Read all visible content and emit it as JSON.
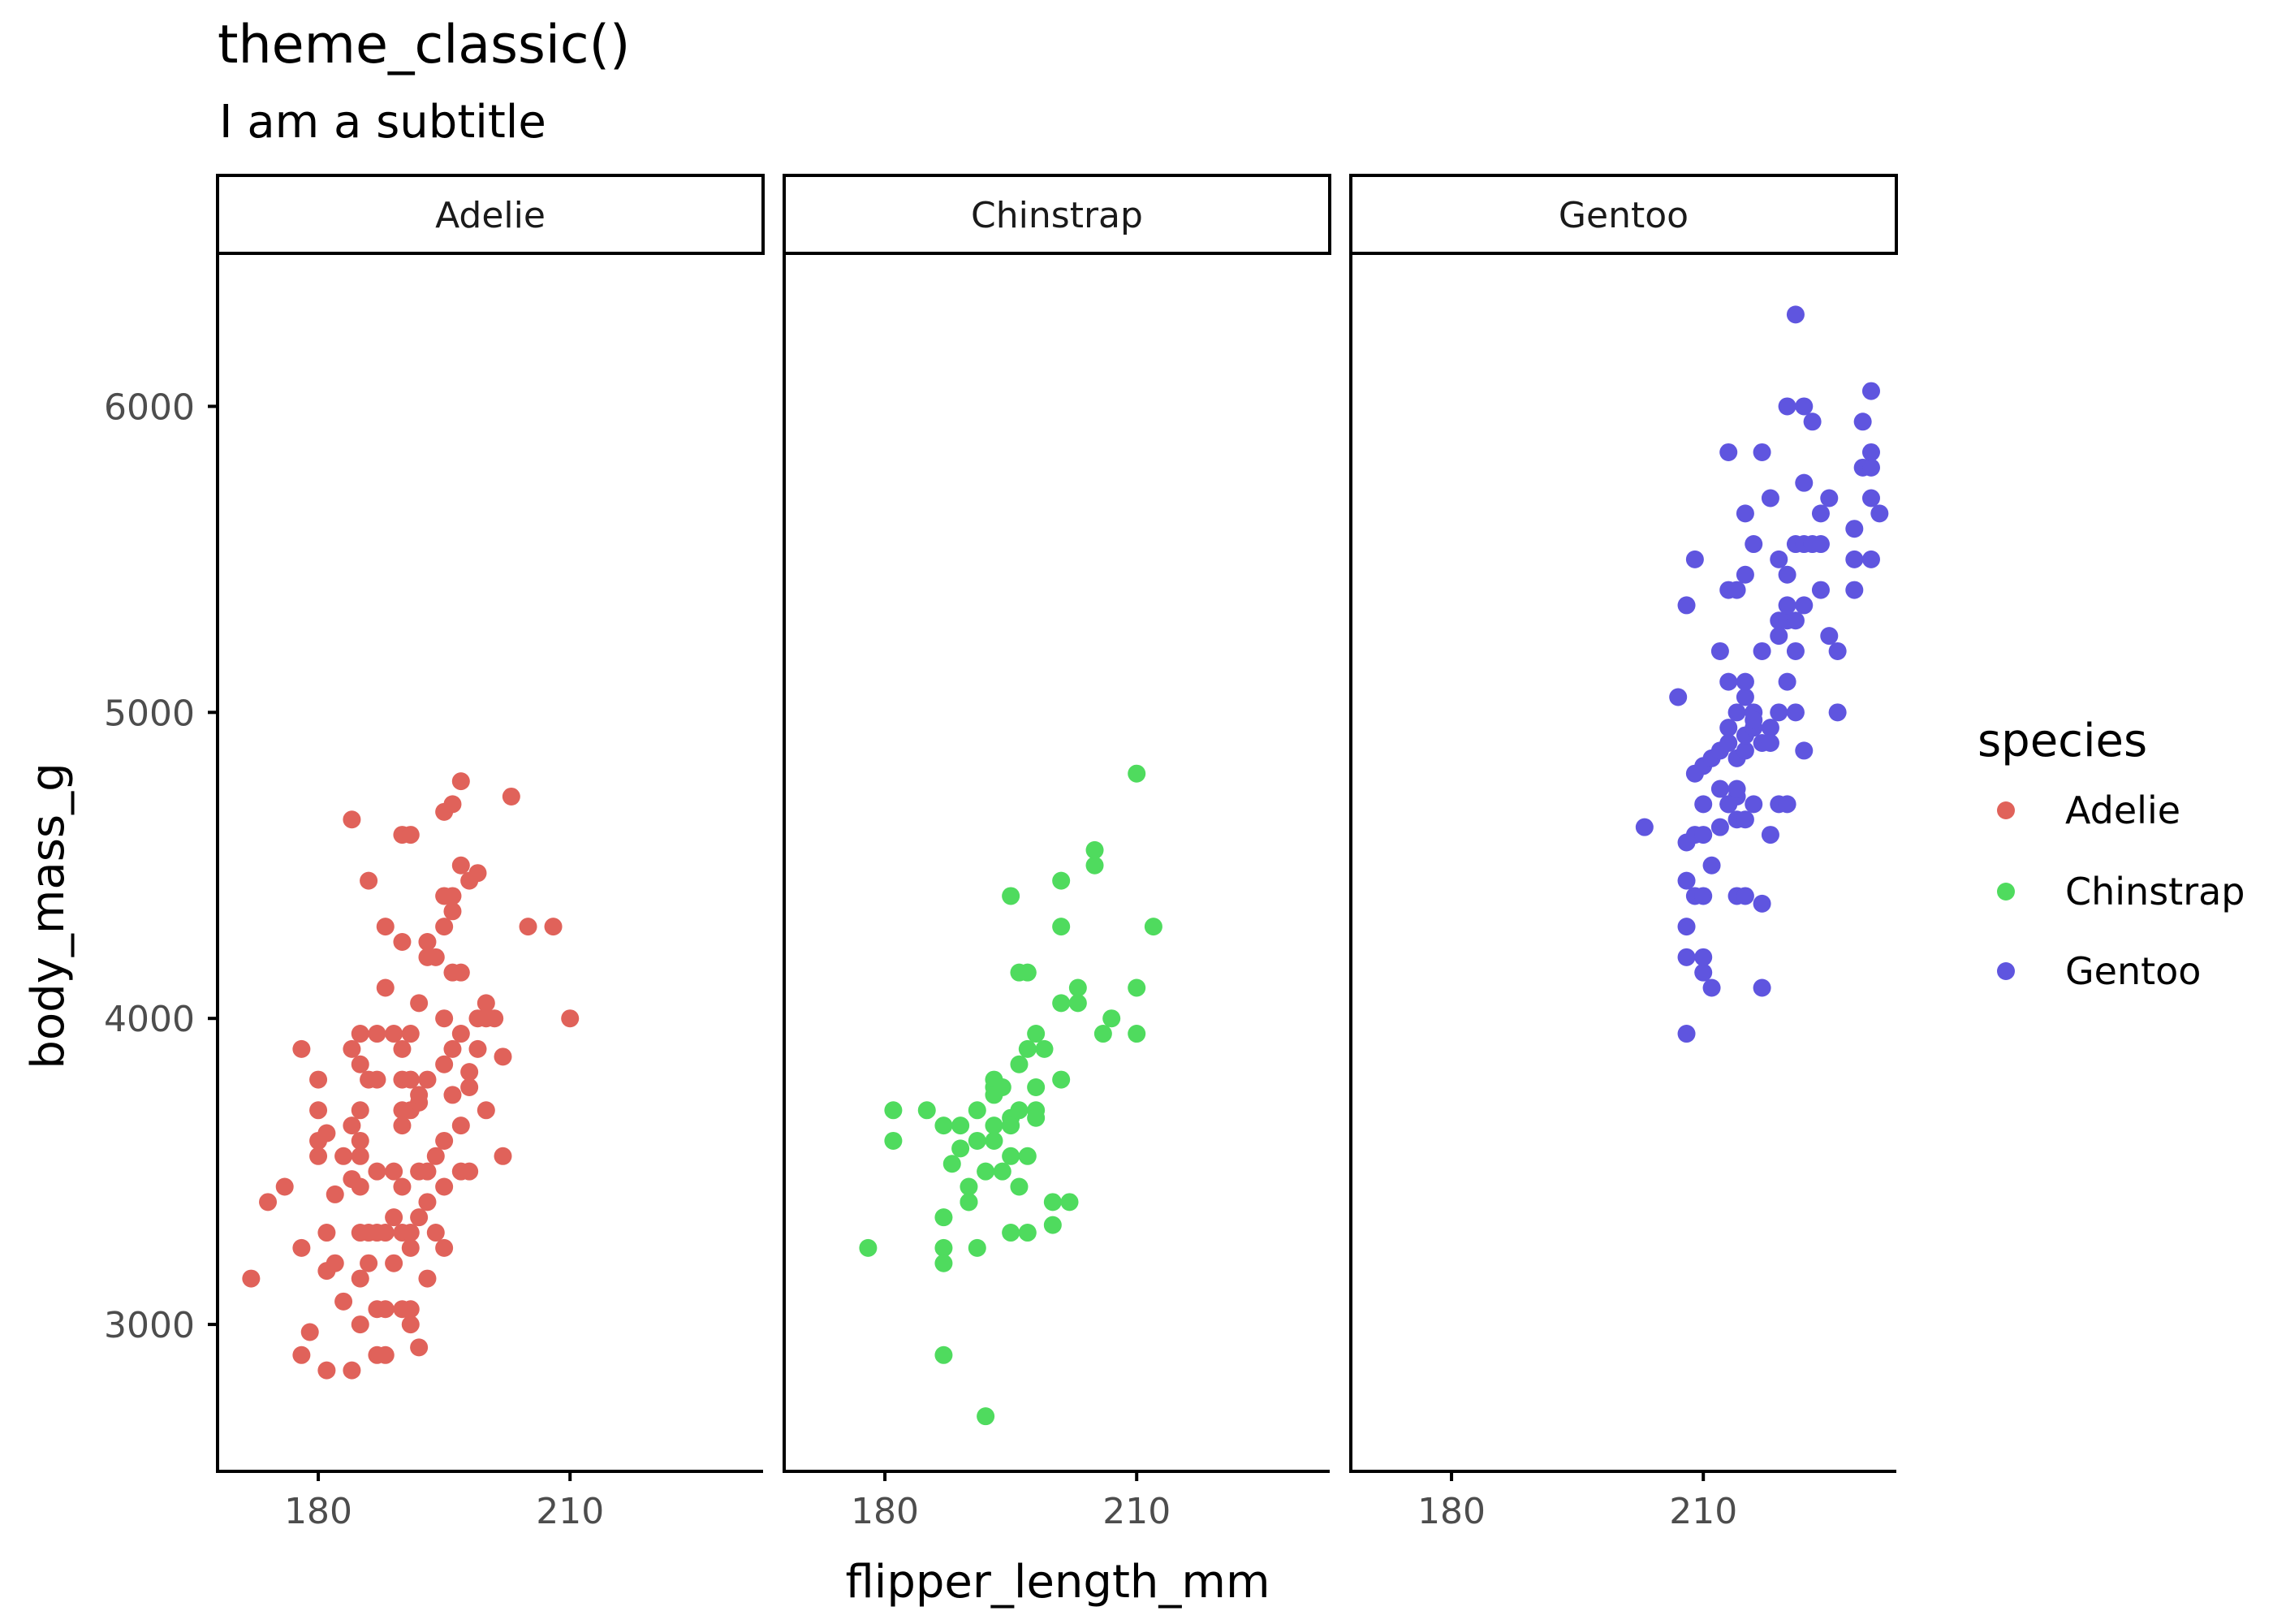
{
  "title": "theme_classic()",
  "subtitle": "I am a subtitle",
  "legend": {
    "title": "species",
    "items": [
      {
        "label": "Adelie",
        "color": "#E0625A"
      },
      {
        "label": "Chinstrap",
        "color": "#4FDB5E"
      },
      {
        "label": "Gentoo",
        "color": "#5F55DF"
      }
    ]
  },
  "chart_data": {
    "type": "scatter",
    "title": "theme_classic()",
    "subtitle": "I am a subtitle",
    "xlabel": "flipper_length_mm",
    "ylabel": "body_mass_g",
    "xlim": [
      168,
      233
    ],
    "ylim": [
      2520,
      6500
    ],
    "x_ticks": [
      180,
      210
    ],
    "y_ticks": [
      3000,
      4000,
      5000,
      6000
    ],
    "grid": false,
    "legend_position": "right",
    "facets": [
      "Adelie",
      "Chinstrap",
      "Gentoo"
    ],
    "series": [
      {
        "name": "Adelie",
        "color": "#E0625A",
        "points": [
          [
            172,
            3150
          ],
          [
            174,
            3400
          ],
          [
            176,
            3450
          ],
          [
            178,
            3250
          ],
          [
            178,
            2900
          ],
          [
            179,
            2975
          ],
          [
            178,
            3900
          ],
          [
            180,
            3800
          ],
          [
            180,
            3700
          ],
          [
            180,
            3550
          ],
          [
            180,
            3600
          ],
          [
            181,
            3625
          ],
          [
            181,
            3300
          ],
          [
            181,
            3175
          ],
          [
            181,
            2850
          ],
          [
            182,
            3200
          ],
          [
            182,
            3425
          ],
          [
            183,
            3550
          ],
          [
            183,
            3075
          ],
          [
            184,
            3650
          ],
          [
            184,
            3475
          ],
          [
            184,
            3900
          ],
          [
            184,
            4650
          ],
          [
            184,
            2850
          ],
          [
            185,
            3300
          ],
          [
            185,
            3550
          ],
          [
            185,
            3000
          ],
          [
            185,
            3150
          ],
          [
            185,
            3600
          ],
          [
            185,
            3450
          ],
          [
            185,
            3700
          ],
          [
            185,
            3850
          ],
          [
            185,
            3950
          ],
          [
            186,
            3200
          ],
          [
            186,
            3800
          ],
          [
            186,
            4450
          ],
          [
            186,
            3300
          ],
          [
            187,
            3050
          ],
          [
            187,
            3300
          ],
          [
            187,
            3500
          ],
          [
            187,
            3800
          ],
          [
            187,
            3950
          ],
          [
            187,
            2900
          ],
          [
            188,
            3300
          ],
          [
            188,
            4300
          ],
          [
            188,
            2900
          ],
          [
            188,
            4100
          ],
          [
            188,
            3050
          ],
          [
            189,
            3350
          ],
          [
            189,
            3500
          ],
          [
            189,
            3200
          ],
          [
            189,
            3950
          ],
          [
            190,
            3800
          ],
          [
            190,
            3900
          ],
          [
            190,
            4600
          ],
          [
            190,
            3300
          ],
          [
            190,
            3450
          ],
          [
            190,
            3650
          ],
          [
            190,
            3700
          ],
          [
            190,
            4250
          ],
          [
            190,
            3050
          ],
          [
            191,
            3700
          ],
          [
            191,
            3050
          ],
          [
            191,
            3800
          ],
          [
            191,
            3300
          ],
          [
            191,
            3950
          ],
          [
            191,
            3250
          ],
          [
            191,
            4600
          ],
          [
            191,
            3000
          ],
          [
            192,
            3725
          ],
          [
            192,
            3500
          ],
          [
            192,
            3350
          ],
          [
            192,
            3750
          ],
          [
            192,
            4050
          ],
          [
            192,
            2925
          ],
          [
            193,
            4200
          ],
          [
            193,
            3500
          ],
          [
            193,
            3800
          ],
          [
            193,
            4250
          ],
          [
            193,
            3400
          ],
          [
            193,
            3150
          ],
          [
            194,
            4200
          ],
          [
            194,
            3550
          ],
          [
            194,
            3300
          ],
          [
            195,
            3250
          ],
          [
            195,
            3600
          ],
          [
            195,
            3850
          ],
          [
            195,
            4300
          ],
          [
            195,
            4400
          ],
          [
            195,
            4000
          ],
          [
            195,
            3450
          ],
          [
            195,
            4675
          ],
          [
            196,
            3900
          ],
          [
            196,
            4150
          ],
          [
            196,
            4400
          ],
          [
            196,
            4700
          ],
          [
            196,
            3750
          ],
          [
            196,
            4350
          ],
          [
            197,
            4150
          ],
          [
            197,
            4500
          ],
          [
            197,
            4775
          ],
          [
            197,
            3500
          ],
          [
            197,
            3950
          ],
          [
            197,
            3650
          ],
          [
            198,
            3825
          ],
          [
            198,
            3500
          ],
          [
            198,
            4450
          ],
          [
            198,
            3775
          ],
          [
            199,
            4475
          ],
          [
            199,
            4000
          ],
          [
            199,
            3900
          ],
          [
            200,
            4050
          ],
          [
            200,
            3700
          ],
          [
            200,
            4000
          ],
          [
            201,
            4000
          ],
          [
            202,
            3875
          ],
          [
            202,
            3550
          ],
          [
            203,
            4725
          ],
          [
            205,
            4300
          ],
          [
            208,
            4300
          ],
          [
            210,
            4000
          ]
        ]
      },
      {
        "name": "Chinstrap",
        "color": "#4FDB5E",
        "points": [
          [
            178,
            3250
          ],
          [
            181,
            3700
          ],
          [
            181,
            3600
          ],
          [
            185,
            3700
          ],
          [
            187,
            3250
          ],
          [
            187,
            3350
          ],
          [
            187,
            3650
          ],
          [
            187,
            3200
          ],
          [
            187,
            2900
          ],
          [
            188,
            3525
          ],
          [
            189,
            3650
          ],
          [
            189,
            3575
          ],
          [
            190,
            3450
          ],
          [
            190,
            3400
          ],
          [
            190,
            3400
          ],
          [
            191,
            3250
          ],
          [
            191,
            3700
          ],
          [
            191,
            3600
          ],
          [
            192,
            2700
          ],
          [
            192,
            3500
          ],
          [
            193,
            3800
          ],
          [
            193,
            3775
          ],
          [
            193,
            3650
          ],
          [
            193,
            3750
          ],
          [
            193,
            3600
          ],
          [
            194,
            3775
          ],
          [
            194,
            3500
          ],
          [
            195,
            3550
          ],
          [
            195,
            4400
          ],
          [
            195,
            3300
          ],
          [
            195,
            3675
          ],
          [
            195,
            3650
          ],
          [
            196,
            3850
          ],
          [
            196,
            4150
          ],
          [
            196,
            3700
          ],
          [
            196,
            3450
          ],
          [
            197,
            3900
          ],
          [
            197,
            3300
          ],
          [
            197,
            4150
          ],
          [
            197,
            3550
          ],
          [
            198,
            3700
          ],
          [
            198,
            3775
          ],
          [
            198,
            3950
          ],
          [
            198,
            3675
          ],
          [
            199,
            3900
          ],
          [
            200,
            3325
          ],
          [
            200,
            3400
          ],
          [
            201,
            4300
          ],
          [
            201,
            4450
          ],
          [
            201,
            4050
          ],
          [
            201,
            3800
          ],
          [
            202,
            3400
          ],
          [
            203,
            4100
          ],
          [
            203,
            4050
          ],
          [
            205,
            4500
          ],
          [
            205,
            4550
          ],
          [
            206,
            3950
          ],
          [
            207,
            4000
          ],
          [
            210,
            4100
          ],
          [
            210,
            4800
          ],
          [
            210,
            3950
          ],
          [
            212,
            4300
          ]
        ]
      },
      {
        "name": "Gentoo",
        "color": "#5F55DF",
        "points": [
          [
            203,
            4625
          ],
          [
            207,
            5050
          ],
          [
            208,
            5350
          ],
          [
            208,
            4450
          ],
          [
            208,
            4300
          ],
          [
            208,
            4200
          ],
          [
            208,
            3950
          ],
          [
            208,
            4575
          ],
          [
            209,
            4600
          ],
          [
            209,
            5500
          ],
          [
            209,
            4400
          ],
          [
            209,
            4800
          ],
          [
            210,
            4700
          ],
          [
            210,
            4400
          ],
          [
            210,
            4600
          ],
          [
            210,
            4150
          ],
          [
            210,
            4200
          ],
          [
            210,
            4825
          ],
          [
            211,
            4850
          ],
          [
            211,
            4500
          ],
          [
            211,
            4100
          ],
          [
            212,
            4750
          ],
          [
            212,
            4875
          ],
          [
            212,
            4625
          ],
          [
            212,
            5200
          ],
          [
            213,
            4700
          ],
          [
            213,
            5400
          ],
          [
            213,
            5850
          ],
          [
            213,
            4950
          ],
          [
            213,
            4900
          ],
          [
            213,
            4700
          ],
          [
            213,
            5100
          ],
          [
            214,
            4400
          ],
          [
            214,
            4650
          ],
          [
            214,
            4725
          ],
          [
            214,
            4750
          ],
          [
            214,
            5000
          ],
          [
            214,
            4850
          ],
          [
            214,
            5400
          ],
          [
            215,
            5050
          ],
          [
            215,
            5650
          ],
          [
            215,
            4875
          ],
          [
            215,
            4925
          ],
          [
            215,
            4400
          ],
          [
            215,
            4650
          ],
          [
            215,
            5100
          ],
          [
            215,
            5450
          ],
          [
            216,
            4700
          ],
          [
            216,
            4950
          ],
          [
            216,
            5550
          ],
          [
            216,
            5000
          ],
          [
            216,
            4975
          ],
          [
            217,
            4900
          ],
          [
            217,
            5200
          ],
          [
            217,
            4100
          ],
          [
            217,
            5850
          ],
          [
            217,
            4375
          ],
          [
            218,
            5700
          ],
          [
            218,
            4600
          ],
          [
            218,
            4950
          ],
          [
            218,
            4900
          ],
          [
            219,
            5250
          ],
          [
            219,
            5000
          ],
          [
            219,
            4700
          ],
          [
            219,
            5300
          ],
          [
            219,
            5500
          ],
          [
            220,
            6000
          ],
          [
            220,
            5300
          ],
          [
            220,
            5350
          ],
          [
            220,
            5450
          ],
          [
            220,
            4700
          ],
          [
            220,
            5100
          ],
          [
            221,
            5300
          ],
          [
            221,
            5200
          ],
          [
            221,
            5000
          ],
          [
            221,
            6300
          ],
          [
            221,
            5550
          ],
          [
            222,
            5750
          ],
          [
            222,
            6000
          ],
          [
            222,
            5550
          ],
          [
            222,
            5350
          ],
          [
            222,
            4875
          ],
          [
            223,
            5950
          ],
          [
            223,
            5550
          ],
          [
            224,
            5650
          ],
          [
            224,
            5400
          ],
          [
            224,
            5550
          ],
          [
            225,
            5700
          ],
          [
            225,
            5250
          ],
          [
            226,
            5200
          ],
          [
            226,
            5000
          ],
          [
            228,
            5400
          ],
          [
            228,
            5600
          ],
          [
            228,
            5500
          ],
          [
            229,
            5950
          ],
          [
            229,
            5800
          ],
          [
            230,
            5800
          ],
          [
            230,
            5850
          ],
          [
            230,
            6050
          ],
          [
            230,
            5700
          ],
          [
            230,
            5500
          ],
          [
            231,
            5650
          ]
        ]
      }
    ]
  }
}
